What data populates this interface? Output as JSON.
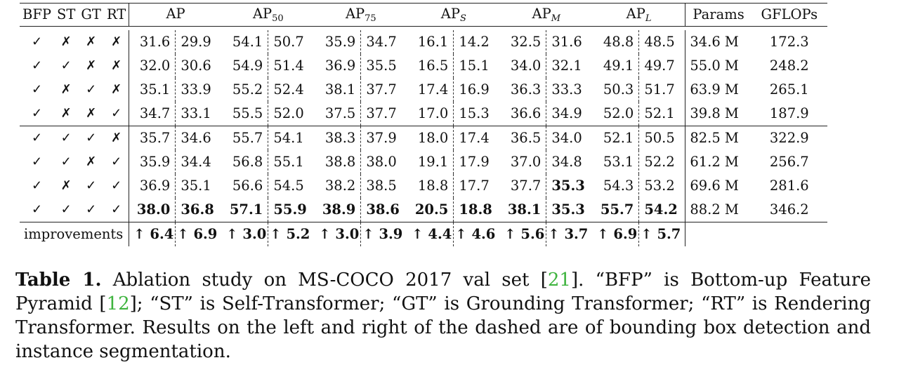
{
  "header": {
    "flags": [
      "BFP",
      "ST",
      "GT",
      "RT"
    ],
    "metrics": [
      {
        "base": "AP",
        "sub": ""
      },
      {
        "base": "AP",
        "sub": "50"
      },
      {
        "base": "AP",
        "sub": "75"
      },
      {
        "base": "AP",
        "sub": "S"
      },
      {
        "base": "AP",
        "sub": "M"
      },
      {
        "base": "AP",
        "sub": "L"
      }
    ],
    "params": "Params",
    "gflops": "GFLOPs"
  },
  "rows": [
    {
      "flags": [
        "✓",
        "✗",
        "✗",
        "✗"
      ],
      "vals": [
        "31.6",
        "29.9",
        "54.1",
        "50.7",
        "35.9",
        "34.7",
        "16.1",
        "14.2",
        "32.5",
        "31.6",
        "48.8",
        "48.5"
      ],
      "params": "34.6 M",
      "gflops": "172.3",
      "bold": []
    },
    {
      "flags": [
        "✓",
        "✓",
        "✗",
        "✗"
      ],
      "vals": [
        "32.0",
        "30.6",
        "54.9",
        "51.4",
        "36.9",
        "35.5",
        "16.5",
        "15.1",
        "34.0",
        "32.1",
        "49.1",
        "49.7"
      ],
      "params": "55.0 M",
      "gflops": "248.2",
      "bold": []
    },
    {
      "flags": [
        "✓",
        "✗",
        "✓",
        "✗"
      ],
      "vals": [
        "35.1",
        "33.9",
        "55.2",
        "52.4",
        "38.1",
        "37.7",
        "17.4",
        "16.9",
        "36.3",
        "33.3",
        "50.3",
        "51.7"
      ],
      "params": "63.9 M",
      "gflops": "265.1",
      "bold": []
    },
    {
      "flags": [
        "✓",
        "✗",
        "✗",
        "✓"
      ],
      "vals": [
        "34.7",
        "33.1",
        "55.5",
        "52.0",
        "37.5",
        "37.7",
        "17.0",
        "15.3",
        "36.6",
        "34.9",
        "52.0",
        "52.1"
      ],
      "params": "39.8 M",
      "gflops": "187.9",
      "bold": []
    },
    {
      "flags": [
        "✓",
        "✓",
        "✓",
        "✗"
      ],
      "vals": [
        "35.7",
        "34.6",
        "55.7",
        "54.1",
        "38.3",
        "37.9",
        "18.0",
        "17.4",
        "36.5",
        "34.0",
        "52.1",
        "50.5"
      ],
      "params": "82.5 M",
      "gflops": "322.9",
      "bold": []
    },
    {
      "flags": [
        "✓",
        "✓",
        "✗",
        "✓"
      ],
      "vals": [
        "35.9",
        "34.4",
        "56.8",
        "55.1",
        "38.8",
        "38.0",
        "19.1",
        "17.9",
        "37.0",
        "34.8",
        "53.1",
        "52.2"
      ],
      "params": "61.2 M",
      "gflops": "256.7",
      "bold": []
    },
    {
      "flags": [
        "✓",
        "✗",
        "✓",
        "✓"
      ],
      "vals": [
        "36.9",
        "35.1",
        "56.6",
        "54.5",
        "38.2",
        "38.5",
        "18.8",
        "17.7",
        "37.7",
        "35.3",
        "54.3",
        "53.2"
      ],
      "params": "69.6 M",
      "gflops": "281.6",
      "bold": [
        9
      ]
    },
    {
      "flags": [
        "✓",
        "✓",
        "✓",
        "✓"
      ],
      "vals": [
        "38.0",
        "36.8",
        "57.1",
        "55.9",
        "38.9",
        "38.6",
        "20.5",
        "18.8",
        "38.1",
        "35.3",
        "55.7",
        "54.2"
      ],
      "params": "88.2 M",
      "gflops": "346.2",
      "bold": [
        0,
        1,
        2,
        3,
        4,
        5,
        6,
        7,
        8,
        9,
        10,
        11
      ]
    }
  ],
  "improvements": {
    "label": "improvements",
    "vals": [
      "↑ 6.4",
      "↑ 6.9",
      "↑ 3.0",
      "↑ 5.2",
      "↑ 3.0",
      "↑ 3.9",
      "↑ 4.4",
      "↑ 4.6",
      "↑ 5.6",
      "↑ 3.7",
      "↑ 6.9",
      "↑ 5.7"
    ]
  },
  "caption": {
    "head": "Table 1.",
    "t1": " Ablation study on MS-COCO 2017 val set [",
    "c1": "21",
    "t2": "]. “BFP” is Bottom-up Feature Pyramid [",
    "c2": "12",
    "t3": "]; “ST” is Self-Transformer; “GT” is Grounding Transformer; “RT” is Rendering Transformer. Results on the left and right of the dashed are of bounding box detection and instance segmentation."
  }
}
